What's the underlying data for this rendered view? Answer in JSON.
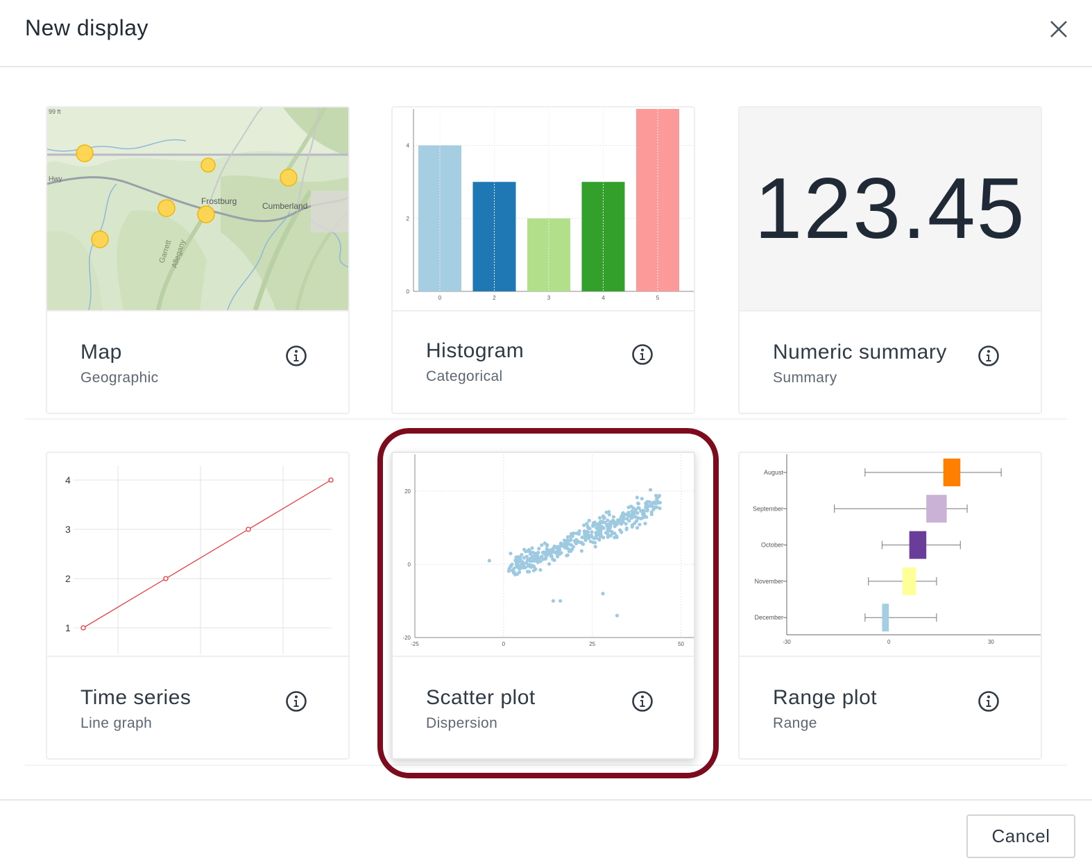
{
  "dialog": {
    "title": "New display",
    "close_icon": "close-icon",
    "cancel_label": "Cancel"
  },
  "cards": [
    {
      "id": "map",
      "title": "Map",
      "subtitle": "Geographic",
      "icon": "info-icon",
      "thumbnail": {
        "labels": [
          "Frostburg",
          "Cumberland",
          "Garrett",
          "Allegany",
          "Hwy"
        ],
        "scale_text": "99 ft"
      }
    },
    {
      "id": "histogram",
      "title": "Histogram",
      "subtitle": "Categorical",
      "icon": "info-icon"
    },
    {
      "id": "numeric-summary",
      "title": "Numeric summary",
      "subtitle": "Summary",
      "icon": "info-icon",
      "value": "123.45"
    },
    {
      "id": "time-series",
      "title": "Time series",
      "subtitle": "Line graph",
      "icon": "info-icon"
    },
    {
      "id": "scatter-plot",
      "title": "Scatter plot",
      "subtitle": "Dispersion",
      "icon": "info-icon",
      "selected": true
    },
    {
      "id": "range-plot",
      "title": "Range plot",
      "subtitle": "Range",
      "icon": "info-icon"
    }
  ],
  "chart_data": [
    {
      "chart": "histogram",
      "type": "bar",
      "categories": [
        "0",
        "2",
        "3",
        "4",
        "5"
      ],
      "values": [
        4,
        3,
        2,
        3,
        5
      ],
      "colors": [
        "#a6cee3",
        "#1f78b4",
        "#b2df8a",
        "#33a02c",
        "#fb9a99"
      ],
      "yticks": [
        "0",
        "2",
        "4"
      ],
      "ylim": [
        0,
        5
      ]
    },
    {
      "chart": "time-series",
      "type": "line",
      "x": [
        0,
        1,
        2,
        3
      ],
      "values": [
        1,
        2,
        3,
        4
      ],
      "yticks": [
        "1",
        "2",
        "3",
        "4"
      ],
      "ylim": [
        0.8,
        4.2
      ],
      "color": "#e8383d"
    },
    {
      "chart": "scatter-plot",
      "type": "scatter",
      "xticks": [
        "-25",
        "0",
        "25",
        "50"
      ],
      "yticks": [
        "-20",
        "0",
        "20"
      ],
      "xlim": [
        -25,
        50
      ],
      "ylim": [
        -20,
        30
      ],
      "color": "#9ecae1",
      "count": 420
    },
    {
      "chart": "range-plot",
      "type": "box",
      "categories": [
        "August",
        "September",
        "October",
        "November",
        "December"
      ],
      "whisker_low": [
        -7,
        -16,
        -2,
        -6,
        -7
      ],
      "box_low": [
        16,
        11,
        6,
        4,
        -2
      ],
      "box_high": [
        21,
        17,
        11,
        8,
        0
      ],
      "whisker_high": [
        33,
        23,
        21,
        14,
        14
      ],
      "colors": [
        "#ff7f00",
        "#cab2d6",
        "#6a3d9a",
        "#ffff99",
        "#a6cee3"
      ],
      "xticks": [
        "-30",
        "0",
        "30"
      ],
      "xlim": [
        -30,
        45
      ]
    }
  ]
}
